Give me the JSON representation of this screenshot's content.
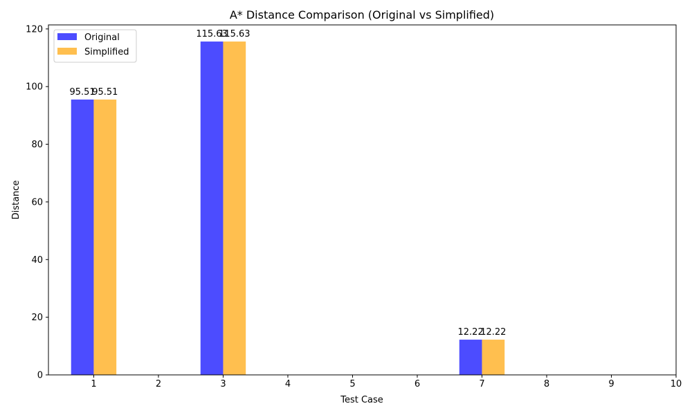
{
  "chart_data": {
    "type": "bar",
    "title": "A* Distance Comparison (Original vs Simplified)",
    "xlabel": "Test Case",
    "ylabel": "Distance",
    "categories": [
      1,
      2,
      3,
      4,
      5,
      6,
      7,
      8,
      9,
      10
    ],
    "series": [
      {
        "name": "Original",
        "color": "#4c4cff",
        "values": [
          95.51,
          null,
          115.63,
          null,
          null,
          null,
          12.22,
          null,
          null,
          null
        ],
        "labels": [
          "95.51",
          null,
          "115.63",
          null,
          null,
          null,
          "12.22",
          null,
          null,
          null
        ]
      },
      {
        "name": "Simplified",
        "color": "#ffbf4f",
        "values": [
          95.51,
          null,
          115.63,
          null,
          null,
          null,
          12.22,
          null,
          null,
          null
        ],
        "labels": [
          "95.51",
          null,
          "115.63",
          null,
          null,
          null,
          "12.22",
          null,
          null,
          null
        ]
      }
    ],
    "xlim": [
      0.3,
      10
    ],
    "ylim": [
      0,
      121.4
    ],
    "yticks": [
      0,
      20,
      40,
      60,
      80,
      100,
      120
    ],
    "xticks": [
      1,
      2,
      3,
      4,
      5,
      6,
      7,
      8,
      9,
      10
    ],
    "legend_position": "upper-left",
    "grid": false
  }
}
